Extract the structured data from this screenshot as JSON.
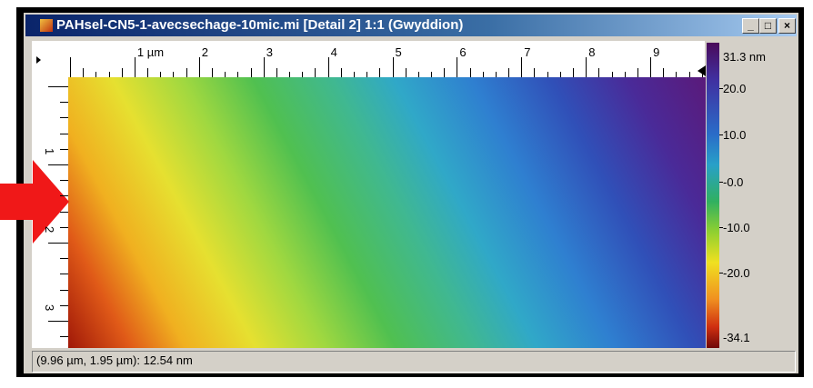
{
  "window": {
    "title": "PAHsel-CN5-1-avecsechage-10mic.mi [Detail 2] 1:1 (Gwyddion)"
  },
  "top_ruler": {
    "labels": [
      "1 µm",
      "2",
      "3",
      "4",
      "5",
      "6",
      "7",
      "8",
      "9"
    ]
  },
  "left_ruler": {
    "labels": [
      "1",
      "2",
      "3"
    ]
  },
  "color_scale": {
    "labels": [
      "31.3 nm",
      "20.0",
      "10.0",
      "-0.0",
      "-10.0",
      "-20.0",
      "-34.1"
    ]
  },
  "status_bar": {
    "text": "(9.96 µm, 1.95 µm): 12.54 nm"
  }
}
